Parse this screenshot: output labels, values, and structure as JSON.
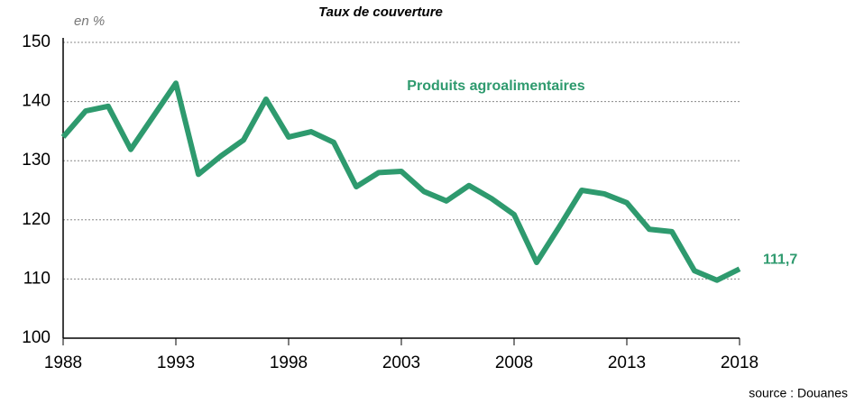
{
  "chart_data": {
    "type": "line",
    "title": "Taux de couverture",
    "y_label": "en %",
    "source": "source : Douanes",
    "x": [
      1988,
      1989,
      1990,
      1991,
      1992,
      1993,
      1994,
      1995,
      1996,
      1997,
      1998,
      1999,
      2000,
      2001,
      2002,
      2003,
      2004,
      2005,
      2006,
      2007,
      2008,
      2009,
      2010,
      2011,
      2012,
      2013,
      2014,
      2015,
      2016,
      2017,
      2018
    ],
    "series": [
      {
        "name": "Produits agroalimentaires",
        "color": "#2e9a6e",
        "values": [
          134.0,
          138.4,
          139.2,
          131.9,
          137.5,
          143.1,
          127.7,
          130.8,
          133.5,
          140.4,
          134.0,
          134.9,
          133.1,
          125.6,
          128.0,
          128.2,
          124.8,
          123.2,
          125.8,
          123.6,
          120.9,
          112.8,
          118.8,
          125.0,
          124.4,
          122.9,
          118.4,
          118.0,
          111.4,
          109.8,
          111.7
        ],
        "value_labels": [
          null,
          null,
          null,
          null,
          null,
          null,
          null,
          null,
          null,
          null,
          null,
          null,
          null,
          null,
          null,
          null,
          null,
          null,
          null,
          null,
          null,
          null,
          null,
          null,
          null,
          null,
          null,
          null,
          null,
          null,
          "111,7"
        ]
      }
    ],
    "xlim": [
      1988,
      2018
    ],
    "xticks": [
      1988,
      1993,
      1998,
      2003,
      2008,
      2013,
      2018
    ],
    "ylim": [
      100,
      150
    ],
    "yticks": [
      100,
      110,
      120,
      130,
      140,
      150
    ],
    "grid": true
  }
}
